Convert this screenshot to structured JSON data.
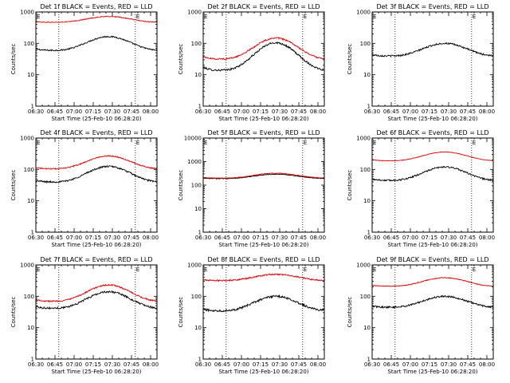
{
  "start_time_label": "Start Time (25-Feb-10 06:28:20)",
  "ylabel": "Counts/sec",
  "marker_label": "E",
  "colors": {
    "events": "#000000",
    "lld": "#e00000"
  },
  "chart_data": [
    {
      "type": "line",
      "title": "Det 1f BLACK = Events, RED = LLD",
      "x": [
        "06:30",
        "06:45",
        "07:00",
        "07:15",
        "07:30",
        "07:45",
        "08:00"
      ],
      "ylim": [
        1,
        1000
      ],
      "yscale": "log",
      "ytick_labels": [
        "1",
        "10",
        "100",
        "1000"
      ],
      "xlim_minutes": [
        0,
        95
      ],
      "vlines": [
        "06:48",
        "07:48"
      ],
      "markers": [
        "06:30",
        "07:48"
      ],
      "series": [
        {
          "name": "Events",
          "color": "#000000",
          "min": 60,
          "max": 165,
          "noise": 0.05
        },
        {
          "name": "LLD",
          "color": "#e00000",
          "min": 470,
          "max": 720,
          "noise": 0.03
        }
      ]
    },
    {
      "type": "line",
      "title": "Det 2f BLACK = Events, RED = LLD",
      "x": [
        "06:30",
        "06:45",
        "07:00",
        "07:15",
        "07:30",
        "07:45",
        "08:00"
      ],
      "ylim": [
        1,
        1000
      ],
      "yscale": "log",
      "ytick_labels": [
        "1",
        "10",
        "100",
        "1000"
      ],
      "xlim_minutes": [
        0,
        95
      ],
      "vlines": [
        "06:48",
        "07:48"
      ],
      "markers": [
        "06:30",
        "07:48"
      ],
      "series": [
        {
          "name": "Events",
          "color": "#000000",
          "min": 14,
          "max": 105,
          "noise": 0.07
        },
        {
          "name": "LLD",
          "color": "#e00000",
          "min": 32,
          "max": 148,
          "noise": 0.05
        }
      ]
    },
    {
      "type": "line",
      "title": "Det 3f BLACK = Events, RED = LLD",
      "x": [
        "06:30",
        "06:45",
        "07:00",
        "07:15",
        "07:30",
        "07:45",
        "08:00"
      ],
      "ylim": [
        1,
        1000
      ],
      "yscale": "log",
      "ytick_labels": [
        "1",
        "10",
        "100",
        "1000"
      ],
      "xlim_minutes": [
        0,
        95
      ],
      "vlines": [
        "06:48",
        "07:48"
      ],
      "markers": [
        "06:30",
        "07:48"
      ],
      "series": [
        {
          "name": "Events",
          "color": "#000000",
          "min": 40,
          "max": 100,
          "noise": 0.06
        }
      ]
    },
    {
      "type": "line",
      "title": "Det 4f BLACK = Events, RED = LLD",
      "x": [
        "06:30",
        "06:45",
        "07:00",
        "07:15",
        "07:30",
        "07:45",
        "08:00"
      ],
      "ylim": [
        1,
        1000
      ],
      "yscale": "log",
      "ytick_labels": [
        "1",
        "10",
        "100",
        "1000"
      ],
      "xlim_minutes": [
        0,
        95
      ],
      "vlines": [
        "06:48",
        "07:48"
      ],
      "markers": [
        "06:30",
        "07:48"
      ],
      "series": [
        {
          "name": "Events",
          "color": "#000000",
          "min": 40,
          "max": 125,
          "noise": 0.06
        },
        {
          "name": "LLD",
          "color": "#e00000",
          "min": 105,
          "max": 270,
          "noise": 0.04
        }
      ]
    },
    {
      "type": "line",
      "title": "Det 5f BLACK = Events, RED = LLD",
      "x": [
        "06:30",
        "06:45",
        "07:00",
        "07:15",
        "07:30",
        "07:45",
        "08:00"
      ],
      "ylim": [
        1,
        10000
      ],
      "yscale": "log",
      "ytick_labels": [
        "1",
        "10",
        "100",
        "1000",
        "10000"
      ],
      "xlim_minutes": [
        0,
        95
      ],
      "vlines": [
        "06:48",
        "07:48"
      ],
      "markers": [
        "06:30",
        "07:48"
      ],
      "series": [
        {
          "name": "Events",
          "color": "#000000",
          "min": 190,
          "max": 290,
          "noise": 0.03
        },
        {
          "name": "LLD",
          "color": "#e00000",
          "min": 200,
          "max": 320,
          "noise": 0.03
        }
      ]
    },
    {
      "type": "line",
      "title": "Det 6f BLACK = Events, RED = LLD",
      "x": [
        "06:30",
        "06:45",
        "07:00",
        "07:15",
        "07:30",
        "07:45",
        "08:00"
      ],
      "ylim": [
        1,
        1000
      ],
      "yscale": "log",
      "ytick_labels": [
        "1",
        "10",
        "100",
        "1000"
      ],
      "xlim_minutes": [
        0,
        95
      ],
      "vlines": [
        "06:48",
        "07:48"
      ],
      "markers": [
        "06:30",
        "07:48"
      ],
      "series": [
        {
          "name": "Events",
          "color": "#000000",
          "min": 45,
          "max": 120,
          "noise": 0.06
        },
        {
          "name": "LLD",
          "color": "#e00000",
          "min": 190,
          "max": 360,
          "noise": 0.02
        }
      ]
    },
    {
      "type": "line",
      "title": "Det 7f BLACK = Events, RED = LLD",
      "x": [
        "06:30",
        "06:45",
        "07:00",
        "07:15",
        "07:30",
        "07:45",
        "08:00"
      ],
      "ylim": [
        1,
        1000
      ],
      "yscale": "log",
      "ytick_labels": [
        "1",
        "10",
        "100",
        "1000"
      ],
      "xlim_minutes": [
        0,
        95
      ],
      "vlines": [
        "06:48",
        "07:48"
      ],
      "markers": [
        "06:30",
        "07:48"
      ],
      "series": [
        {
          "name": "Events",
          "color": "#000000",
          "min": 42,
          "max": 140,
          "noise": 0.07
        },
        {
          "name": "LLD",
          "color": "#e00000",
          "min": 70,
          "max": 230,
          "noise": 0.05
        }
      ]
    },
    {
      "type": "line",
      "title": "Det 8f BLACK = Events, RED = LLD",
      "x": [
        "06:30",
        "06:45",
        "07:00",
        "07:15",
        "07:30",
        "07:45",
        "08:00"
      ],
      "ylim": [
        1,
        1000
      ],
      "yscale": "log",
      "ytick_labels": [
        "1",
        "10",
        "100",
        "1000"
      ],
      "xlim_minutes": [
        0,
        95
      ],
      "vlines": [
        "06:48",
        "07:48"
      ],
      "markers": [
        "06:30",
        "07:48"
      ],
      "series": [
        {
          "name": "Events",
          "color": "#000000",
          "min": 35,
          "max": 100,
          "noise": 0.08
        },
        {
          "name": "LLD",
          "color": "#e00000",
          "min": 320,
          "max": 500,
          "noise": 0.05
        }
      ]
    },
    {
      "type": "line",
      "title": "Det 9f BLACK = Events, RED = LLD",
      "x": [
        "06:30",
        "06:45",
        "07:00",
        "07:15",
        "07:30",
        "07:45",
        "08:00"
      ],
      "ylim": [
        1,
        1000
      ],
      "yscale": "log",
      "ytick_labels": [
        "1",
        "10",
        "100",
        "1000"
      ],
      "xlim_minutes": [
        0,
        95
      ],
      "vlines": [
        "06:48",
        "07:48"
      ],
      "markers": [
        "06:30",
        "07:48"
      ],
      "series": [
        {
          "name": "Events",
          "color": "#000000",
          "min": 45,
          "max": 100,
          "noise": 0.06
        },
        {
          "name": "LLD",
          "color": "#e00000",
          "min": 210,
          "max": 390,
          "noise": 0.03
        }
      ]
    }
  ]
}
